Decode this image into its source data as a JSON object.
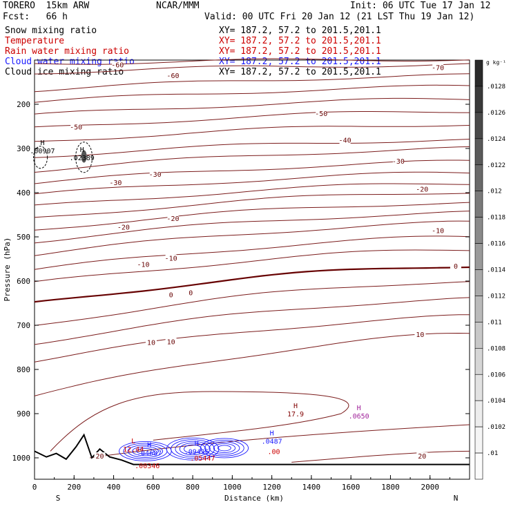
{
  "header": {
    "model": "TORERO  15km ARW",
    "center": "NCAR/MMM",
    "init": "Init: 06 UTC Tue 17 Jan 12",
    "fcst": "Fcst:   66 h",
    "valid": "Valid: 00 UTC Fri 20 Jan 12 (21 LST Thu 19 Jan 12)"
  },
  "legend": [
    {
      "name": "Snow mixing ratio",
      "color": "#000000",
      "xy": "XY= 187.2, 57.2 to 201.5,201.1"
    },
    {
      "name": "Temperature",
      "color": "#cc0000",
      "xy": "XY= 187.2, 57.2 to 201.5,201.1"
    },
    {
      "name": "Rain water mixing ratio",
      "color": "#cc0000",
      "xy": "XY= 187.2, 57.2 to 201.5,201.1"
    },
    {
      "name": "Cloud water mixing ratio",
      "color": "#1a1aff",
      "xy": "XY= 187.2, 57.2 to 201.5,201.1"
    },
    {
      "name": "Cloud ice mixing ratio",
      "color": "#000000",
      "xy": "XY= 187.2, 57.2 to 201.5,201.1"
    }
  ],
  "colorbar": {
    "unit": "g kg⁻¹",
    "labels": [
      ".0128",
      ".0126",
      ".0124",
      ".0122",
      ".012",
      ".0118",
      ".0116",
      ".0114",
      ".0112",
      ".011",
      ".0108",
      ".0106",
      ".0104",
      ".0102",
      ".01"
    ],
    "colors": [
      "#2a2a2a",
      "#3a3a3a",
      "#4a4a4a",
      "#5a5a5a",
      "#6a6a6a",
      "#7a7a7a",
      "#8a8a8a",
      "#9a9a9a",
      "#aaaaaa",
      "#bababa",
      "#c8c8c8",
      "#d6d6d6",
      "#e2e2e2",
      "#ededed",
      "#f5f5f5",
      "#fbfbfb"
    ]
  },
  "chart_data": {
    "type": "contour-cross-section",
    "xlabel": "Distance (km)",
    "ylabel": "Pressure (hPa)",
    "x_ticks": [
      "0",
      "200",
      "400",
      "600",
      "800",
      "1000",
      "1200",
      "1400",
      "1600",
      "1800",
      "2000"
    ],
    "y_ticks": [
      "200",
      "300",
      "400",
      "500",
      "600",
      "700",
      "800",
      "900",
      "1000"
    ],
    "xlim": [
      0,
      2200
    ],
    "ylim": [
      1050,
      100
    ],
    "left_end": "S",
    "right_end": "N",
    "temperature_levels": [
      -70,
      -60,
      -50,
      -40,
      -30,
      -20,
      -10,
      0,
      10,
      20
    ],
    "temperature_labels": [
      {
        "text": "-70",
        "x": 2040,
        "p": 118
      },
      {
        "text": "-60",
        "x": 700,
        "p": 136
      },
      {
        "text": "-60",
        "x": 420,
        "p": 112
      },
      {
        "text": "-50",
        "x": 210,
        "p": 252
      },
      {
        "text": "-50",
        "x": 1450,
        "p": 222
      },
      {
        "text": "-40",
        "x": 1570,
        "p": 282
      },
      {
        "text": "-30",
        "x": 410,
        "p": 378
      },
      {
        "text": "-30",
        "x": 610,
        "p": 359
      },
      {
        "text": "-30",
        "x": 1840,
        "p": 330
      },
      {
        "text": "-20",
        "x": 450,
        "p": 479
      },
      {
        "text": "-20",
        "x": 700,
        "p": 459
      },
      {
        "text": "-20",
        "x": 1960,
        "p": 393
      },
      {
        "text": "-10",
        "x": 550,
        "p": 563
      },
      {
        "text": "-10",
        "x": 690,
        "p": 549
      },
      {
        "text": "-10",
        "x": 2040,
        "p": 487
      },
      {
        "text": "0",
        "x": 690,
        "p": 632
      },
      {
        "text": "0",
        "x": 790,
        "p": 627
      },
      {
        "text": "0",
        "x": 2130,
        "p": 567
      },
      {
        "text": "10",
        "x": 590,
        "p": 740
      },
      {
        "text": "10",
        "x": 690,
        "p": 738
      },
      {
        "text": "10",
        "x": 1950,
        "p": 722
      },
      {
        "text": "20",
        "x": 330,
        "p": 997
      },
      {
        "text": "20",
        "x": 1960,
        "p": 997
      }
    ],
    "extrema": [
      {
        "mark": "H",
        "value": ".00907",
        "x": 40,
        "p": 305,
        "color": "#000000"
      },
      {
        "mark": "H",
        "value": ".02389",
        "x": 240,
        "p": 320,
        "color": "#000000"
      },
      {
        "mark": "H",
        "value": "17.9",
        "x": 1320,
        "p": 900,
        "color": "#800000"
      },
      {
        "mark": "H",
        "value": ".0650",
        "x": 1640,
        "p": 905,
        "color": "#a0229a"
      },
      {
        "mark": "H",
        "value": ".0487",
        "x": 1200,
        "p": 962,
        "color": "#1a1aff"
      },
      {
        "mark": "",
        "value": ".00",
        "x": 1210,
        "p": 985,
        "color": "#cc0000"
      },
      {
        "mark": "L",
        "value": "12.44",
        "x": 500,
        "p": 980,
        "color": "#cc0000"
      },
      {
        "mark": "H",
        "value": ".04687",
        "x": 580,
        "p": 988,
        "color": "#1a1aff"
      },
      {
        "mark": "",
        "value": ".00346",
        "x": 570,
        "p": 1017,
        "color": "#cc0000"
      },
      {
        "mark": "H",
        "value": ".09416",
        "x": 820,
        "p": 985,
        "color": "#1a1aff"
      },
      {
        "mark": "",
        "value": ".05447",
        "x": 850,
        "p": 1000,
        "color": "#cc0000"
      }
    ]
  }
}
